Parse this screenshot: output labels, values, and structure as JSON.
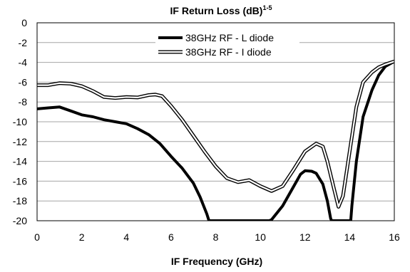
{
  "chart_data": {
    "type": "line",
    "title": "IF Return Loss (dB)",
    "title_superscript": "1-5",
    "xlabel": "IF Frequency (GHz)",
    "ylabel": "",
    "xlim": [
      0,
      16
    ],
    "ylim": [
      -20,
      0
    ],
    "xticks": [
      "0",
      "2",
      "4",
      "6",
      "8",
      "10",
      "12",
      "14",
      "16"
    ],
    "yticks": [
      "0",
      "-2",
      "-4",
      "-6",
      "-8",
      "-10",
      "-12",
      "-14",
      "-16",
      "-18",
      "-20"
    ],
    "grid": "horizontal",
    "legend_position": "top-center",
    "series": [
      {
        "name": "38GHz RF - L diode",
        "style": "thick-solid",
        "color": "#000000",
        "x": [
          0,
          0.5,
          1.0,
          1.5,
          2.0,
          2.5,
          3.0,
          3.5,
          4.0,
          4.5,
          5.0,
          5.5,
          6.0,
          6.5,
          7.0,
          7.3,
          7.6,
          7.7,
          10.4,
          10.5,
          11.0,
          11.5,
          11.8,
          12.0,
          12.3,
          12.5,
          12.8,
          13.0,
          13.15,
          13.2,
          14.05,
          14.1,
          14.3,
          14.6,
          15.0,
          15.3,
          15.6,
          16.0
        ],
        "y": [
          -8.7,
          -8.6,
          -8.5,
          -8.9,
          -9.3,
          -9.5,
          -9.8,
          -10.0,
          -10.2,
          -10.7,
          -11.3,
          -12.2,
          -13.5,
          -14.7,
          -16.2,
          -17.6,
          -19.3,
          -20,
          -20,
          -19.9,
          -18.5,
          -16.5,
          -15.3,
          -14.95,
          -15.0,
          -15.2,
          -16.3,
          -18.0,
          -19.8,
          -20,
          -20,
          -18.5,
          -14.0,
          -9.5,
          -6.8,
          -5.3,
          -4.4,
          -3.9
        ]
      },
      {
        "name": "38GHz RF - I diode",
        "style": "double-line",
        "color": "#000000",
        "x": [
          0,
          0.5,
          1.0,
          1.5,
          2.0,
          2.5,
          3.0,
          3.5,
          4.0,
          4.5,
          5.0,
          5.3,
          5.6,
          6.0,
          6.5,
          7.0,
          7.5,
          8.0,
          8.5,
          9.0,
          9.5,
          10.0,
          10.5,
          11.0,
          11.5,
          12.0,
          12.5,
          12.8,
          13.0,
          13.3,
          13.5,
          13.7,
          14.0,
          14.3,
          14.6,
          15.0,
          15.3,
          15.6,
          16.0
        ],
        "y": [
          -6.3,
          -6.3,
          -6.1,
          -6.15,
          -6.4,
          -6.9,
          -7.5,
          -7.6,
          -7.5,
          -7.55,
          -7.3,
          -7.25,
          -7.4,
          -8.4,
          -9.8,
          -11.4,
          -13.0,
          -14.5,
          -15.7,
          -16.1,
          -15.9,
          -16.5,
          -17.0,
          -16.5,
          -14.8,
          -13.0,
          -12.2,
          -12.5,
          -14.0,
          -16.8,
          -18.6,
          -17.5,
          -13.0,
          -8.5,
          -6.0,
          -5.0,
          -4.5,
          -4.2,
          -3.9
        ]
      }
    ]
  }
}
